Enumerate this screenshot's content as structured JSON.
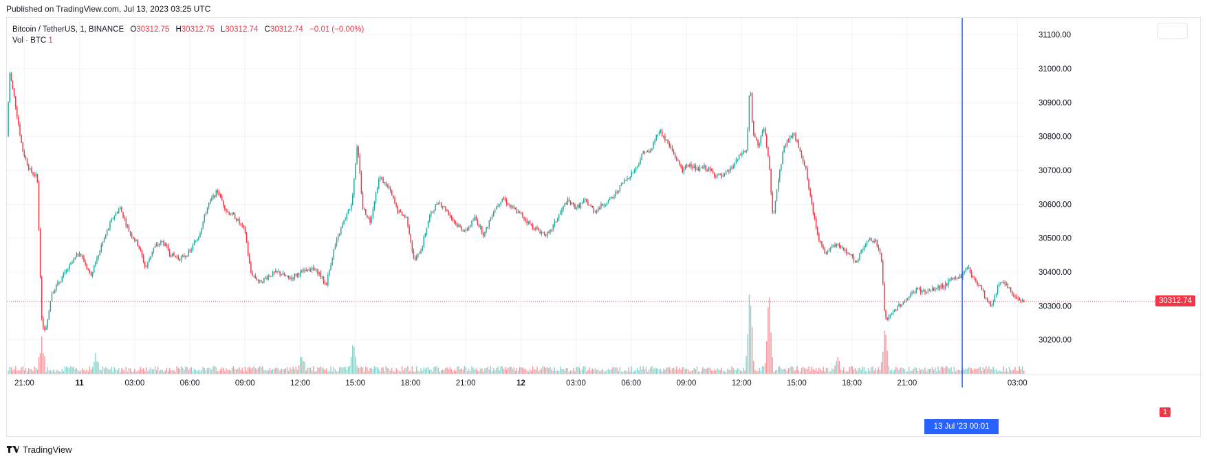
{
  "header": {
    "published": "Published on TradingView.com, Jul 13, 2023 03:25 UTC"
  },
  "legend": {
    "symbol": "Bitcoin / TetherUS, 1, BINANCE",
    "o_label": "O",
    "o_value": "30312.75",
    "h_label": "H",
    "h_value": "30312.75",
    "l_label": "L",
    "l_value": "30312.74",
    "c_label": "C",
    "c_value": "30312.74",
    "change": "−0.01 (−0.00%)",
    "vol_label": "Vol · BTC",
    "vol_value": "1"
  },
  "price_tag": "30312.74",
  "vol_tag": "1",
  "crosshair_label": "13 Jul '23   00:01",
  "footer": {
    "brand": "TradingView"
  },
  "colors": {
    "up": "#26a69a",
    "down": "#f23645",
    "crosshair": "#2962ff",
    "grid": "#f0f3fa"
  },
  "chart_data": {
    "type": "candlestick",
    "title": "Bitcoin / TetherUS, 1, BINANCE",
    "ylim": [
      30100,
      31150
    ],
    "y_ticks": [
      "30200.00",
      "30300.00",
      "30400.00",
      "30500.00",
      "30600.00",
      "30700.00",
      "30800.00",
      "30900.00",
      "31000.00",
      "31100.00"
    ],
    "x_ticks": [
      {
        "label": "21:00",
        "hour": 21
      },
      {
        "label": "11",
        "hour": 24,
        "bold": true
      },
      {
        "label": "03:00",
        "hour": 27
      },
      {
        "label": "06:00",
        "hour": 30
      },
      {
        "label": "09:00",
        "hour": 33
      },
      {
        "label": "12:00",
        "hour": 36
      },
      {
        "label": "15:00",
        "hour": 39
      },
      {
        "label": "18:00",
        "hour": 42
      },
      {
        "label": "21:00",
        "hour": 45
      },
      {
        "label": "12",
        "hour": 48,
        "bold": true
      },
      {
        "label": "03:00",
        "hour": 51
      },
      {
        "label": "06:00",
        "hour": 54
      },
      {
        "label": "09:00",
        "hour": 57
      },
      {
        "label": "12:00",
        "hour": 60
      },
      {
        "label": "15:00",
        "hour": 63
      },
      {
        "label": "18:00",
        "hour": 66
      },
      {
        "label": "21:00",
        "hour": 69
      },
      {
        "label": "03:00",
        "hour": 75
      }
    ],
    "x_range_hours": [
      20.05,
      75.4
    ],
    "crosshair_hour": 72.0,
    "last_price": 30312.74,
    "price_path": [
      [
        20.05,
        30800
      ],
      [
        20.2,
        30990
      ],
      [
        20.5,
        30900
      ],
      [
        20.9,
        30760
      ],
      [
        21.3,
        30700
      ],
      [
        21.7,
        30680
      ],
      [
        21.95,
        30250
      ],
      [
        22.15,
        30230
      ],
      [
        22.5,
        30340
      ],
      [
        23.0,
        30380
      ],
      [
        23.5,
        30420
      ],
      [
        24.0,
        30460
      ],
      [
        24.6,
        30390
      ],
      [
        25.2,
        30480
      ],
      [
        25.8,
        30560
      ],
      [
        26.2,
        30590
      ],
      [
        26.7,
        30520
      ],
      [
        27.2,
        30480
      ],
      [
        27.6,
        30410
      ],
      [
        28.0,
        30470
      ],
      [
        28.5,
        30490
      ],
      [
        29.0,
        30450
      ],
      [
        29.5,
        30440
      ],
      [
        30.0,
        30460
      ],
      [
        30.5,
        30510
      ],
      [
        31.0,
        30600
      ],
      [
        31.5,
        30640
      ],
      [
        32.0,
        30580
      ],
      [
        32.5,
        30560
      ],
      [
        33.0,
        30520
      ],
      [
        33.3,
        30400
      ],
      [
        33.8,
        30370
      ],
      [
        34.3,
        30390
      ],
      [
        34.8,
        30400
      ],
      [
        35.4,
        30380
      ],
      [
        36.0,
        30400
      ],
      [
        36.5,
        30410
      ],
      [
        37.0,
        30400
      ],
      [
        37.4,
        30360
      ],
      [
        37.8,
        30460
      ],
      [
        38.3,
        30540
      ],
      [
        38.8,
        30600
      ],
      [
        39.1,
        30780
      ],
      [
        39.4,
        30590
      ],
      [
        39.8,
        30550
      ],
      [
        40.3,
        30680
      ],
      [
        40.8,
        30650
      ],
      [
        41.3,
        30580
      ],
      [
        41.8,
        30560
      ],
      [
        42.2,
        30430
      ],
      [
        42.6,
        30470
      ],
      [
        43.0,
        30560
      ],
      [
        43.5,
        30610
      ],
      [
        44.0,
        30580
      ],
      [
        44.5,
        30540
      ],
      [
        45.0,
        30520
      ],
      [
        45.5,
        30560
      ],
      [
        46.0,
        30510
      ],
      [
        46.5,
        30580
      ],
      [
        47.0,
        30620
      ],
      [
        47.5,
        30590
      ],
      [
        48.0,
        30570
      ],
      [
        48.5,
        30540
      ],
      [
        49.0,
        30520
      ],
      [
        49.5,
        30510
      ],
      [
        50.0,
        30560
      ],
      [
        50.5,
        30610
      ],
      [
        51.0,
        30590
      ],
      [
        51.5,
        30610
      ],
      [
        52.0,
        30580
      ],
      [
        52.5,
        30600
      ],
      [
        53.0,
        30620
      ],
      [
        53.5,
        30660
      ],
      [
        54.0,
        30690
      ],
      [
        54.3,
        30710
      ],
      [
        54.7,
        30760
      ],
      [
        55.0,
        30750
      ],
      [
        55.5,
        30820
      ],
      [
        56.0,
        30780
      ],
      [
        56.4,
        30740
      ],
      [
        56.8,
        30700
      ],
      [
        57.2,
        30720
      ],
      [
        57.6,
        30700
      ],
      [
        58.0,
        30710
      ],
      [
        58.5,
        30690
      ],
      [
        59.0,
        30680
      ],
      [
        59.5,
        30710
      ],
      [
        60.0,
        30750
      ],
      [
        60.3,
        30760
      ],
      [
        60.45,
        30970
      ],
      [
        60.6,
        30820
      ],
      [
        60.9,
        30770
      ],
      [
        61.2,
        30830
      ],
      [
        61.5,
        30720
      ],
      [
        61.7,
        30560
      ],
      [
        61.9,
        30640
      ],
      [
        62.3,
        30770
      ],
      [
        62.8,
        30810
      ],
      [
        63.2,
        30760
      ],
      [
        63.5,
        30700
      ],
      [
        63.8,
        30600
      ],
      [
        64.2,
        30500
      ],
      [
        64.6,
        30450
      ],
      [
        65.0,
        30480
      ],
      [
        65.4,
        30470
      ],
      [
        65.8,
        30460
      ],
      [
        66.2,
        30430
      ],
      [
        66.6,
        30470
      ],
      [
        67.0,
        30500
      ],
      [
        67.3,
        30490
      ],
      [
        67.6,
        30440
      ],
      [
        67.8,
        30260
      ],
      [
        68.1,
        30270
      ],
      [
        68.5,
        30300
      ],
      [
        69.0,
        30320
      ],
      [
        69.5,
        30350
      ],
      [
        70.0,
        30340
      ],
      [
        70.5,
        30350
      ],
      [
        71.0,
        30360
      ],
      [
        71.5,
        30380
      ],
      [
        72.0,
        30390
      ],
      [
        72.3,
        30420
      ],
      [
        72.6,
        30380
      ],
      [
        73.0,
        30360
      ],
      [
        73.3,
        30320
      ],
      [
        73.6,
        30300
      ],
      [
        74.0,
        30370
      ],
      [
        74.4,
        30360
      ],
      [
        74.8,
        30330
      ],
      [
        75.2,
        30320
      ],
      [
        75.35,
        30312.74
      ]
    ],
    "volume_spikes": [
      {
        "hour": 21.95,
        "vol": 0.5
      },
      {
        "hour": 38.9,
        "vol": 0.5
      },
      {
        "hour": 60.45,
        "vol": 1.0
      },
      {
        "hour": 61.5,
        "vol": 0.9
      },
      {
        "hour": 67.8,
        "vol": 0.55
      },
      {
        "hour": 24.9,
        "vol": 0.25
      },
      {
        "hour": 36.1,
        "vol": 0.3
      },
      {
        "hour": 65.2,
        "vol": 0.25
      }
    ]
  }
}
